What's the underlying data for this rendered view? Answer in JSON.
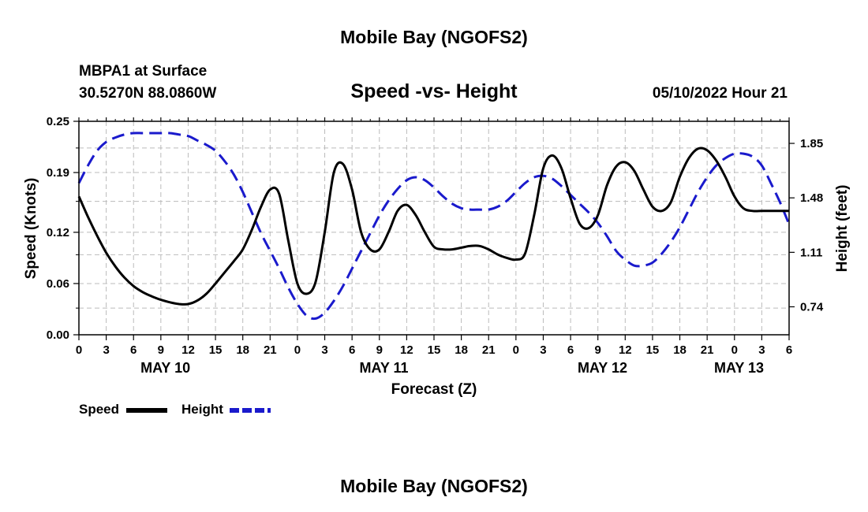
{
  "title": "Mobile Bay (NGOFS2)",
  "station": "MBPA1 at Surface",
  "coords": "30.5270N  88.0860W",
  "subtitle": "Speed -vs- Height",
  "datetime": "05/10/2022 Hour 21",
  "footer_title": "Mobile Bay (NGOFS2)",
  "colors": {
    "speed": "#000000",
    "height": "#1a1acc",
    "grid": "#bbbbbb"
  },
  "chart_data": {
    "type": "line",
    "title": "Speed -vs- Height",
    "xlabel": "Forecast (Z)",
    "ylabel": "Speed (Knots)",
    "y2label": "Height (feet)",
    "x_range_hours": [
      0,
      78
    ],
    "ylim": [
      0,
      0.25
    ],
    "y2lim": [
      0.55,
      2.0
    ],
    "x_tick_labels": [
      "0",
      "3",
      "6",
      "9",
      "12",
      "15",
      "18",
      "21",
      "0",
      "3",
      "6",
      "9",
      "12",
      "15",
      "18",
      "21",
      "0",
      "3",
      "6",
      "9",
      "12",
      "15",
      "18",
      "21",
      "0",
      "3",
      "6"
    ],
    "day_labels": [
      {
        "label": "MAY 10",
        "hour": 9.5
      },
      {
        "label": "MAY 11",
        "hour": 33.5
      },
      {
        "label": "MAY 12",
        "hour": 57.5
      },
      {
        "label": "MAY 13",
        "hour": 72.5
      }
    ],
    "y_ticks": [
      "0.00",
      "0.06",
      "0.12",
      "0.19",
      "0.25"
    ],
    "y2_ticks": [
      "0.74",
      "1.11",
      "1.48",
      "1.85"
    ],
    "legend": [
      {
        "name": "Speed",
        "style": "solid"
      },
      {
        "name": "Height",
        "style": "dashed"
      }
    ],
    "series": [
      {
        "name": "Speed",
        "unit": "knots",
        "x": [
          0,
          1,
          2,
          3,
          4,
          5,
          6,
          7,
          8,
          9,
          10,
          11,
          12,
          13,
          14,
          15,
          16,
          17,
          18,
          19,
          20,
          21,
          22,
          23,
          24,
          25,
          26,
          27,
          28,
          29,
          30,
          31,
          32,
          33,
          34,
          35,
          36,
          37,
          38,
          39,
          40,
          41,
          42,
          43,
          44,
          45,
          46,
          47,
          48,
          49,
          50,
          51,
          52,
          53,
          54,
          55,
          56,
          57,
          58,
          59,
          60,
          61,
          62,
          63,
          64,
          65,
          66,
          67,
          68,
          69,
          70,
          71,
          72,
          73,
          74,
          75,
          76,
          77,
          78
        ],
        "values": [
          0.162,
          0.138,
          0.116,
          0.096,
          0.08,
          0.067,
          0.057,
          0.05,
          0.045,
          0.041,
          0.038,
          0.036,
          0.036,
          0.04,
          0.048,
          0.06,
          0.073,
          0.086,
          0.1,
          0.123,
          0.15,
          0.17,
          0.165,
          0.11,
          0.06,
          0.048,
          0.062,
          0.12,
          0.19,
          0.2,
          0.17,
          0.12,
          0.1,
          0.1,
          0.12,
          0.145,
          0.152,
          0.14,
          0.12,
          0.103,
          0.1,
          0.1,
          0.102,
          0.104,
          0.104,
          0.1,
          0.094,
          0.09,
          0.088,
          0.095,
          0.14,
          0.195,
          0.21,
          0.195,
          0.16,
          0.13,
          0.125,
          0.14,
          0.175,
          0.197,
          0.202,
          0.192,
          0.17,
          0.15,
          0.145,
          0.155,
          0.185,
          0.207,
          0.218,
          0.216,
          0.204,
          0.185,
          0.162,
          0.148,
          0.145,
          0.145,
          0.145,
          0.145,
          0.145
        ]
      },
      {
        "name": "Height",
        "unit": "feet",
        "x": [
          0,
          1,
          2,
          3,
          4,
          5,
          6,
          7,
          8,
          9,
          10,
          11,
          12,
          13,
          14,
          15,
          16,
          17,
          18,
          19,
          20,
          21,
          22,
          23,
          24,
          25,
          26,
          27,
          28,
          29,
          30,
          31,
          32,
          33,
          34,
          35,
          36,
          37,
          38,
          39,
          40,
          41,
          42,
          43,
          44,
          45,
          46,
          47,
          48,
          49,
          50,
          51,
          52,
          53,
          54,
          55,
          56,
          57,
          58,
          59,
          60,
          61,
          62,
          63,
          64,
          65,
          66,
          67,
          68,
          69,
          70,
          71,
          72,
          73,
          74,
          75,
          76,
          77,
          78
        ],
        "values": [
          1.58,
          1.7,
          1.8,
          1.86,
          1.89,
          1.91,
          1.92,
          1.92,
          1.92,
          1.92,
          1.92,
          1.91,
          1.9,
          1.87,
          1.84,
          1.8,
          1.73,
          1.64,
          1.52,
          1.38,
          1.24,
          1.12,
          1.0,
          0.87,
          0.76,
          0.68,
          0.66,
          0.7,
          0.78,
          0.88,
          1.0,
          1.12,
          1.24,
          1.36,
          1.46,
          1.54,
          1.6,
          1.62,
          1.6,
          1.55,
          1.49,
          1.44,
          1.41,
          1.4,
          1.4,
          1.4,
          1.42,
          1.46,
          1.52,
          1.58,
          1.62,
          1.63,
          1.61,
          1.56,
          1.5,
          1.44,
          1.38,
          1.31,
          1.22,
          1.12,
          1.06,
          1.02,
          1.02,
          1.04,
          1.1,
          1.18,
          1.28,
          1.4,
          1.52,
          1.62,
          1.7,
          1.75,
          1.78,
          1.78,
          1.76,
          1.7,
          1.58,
          1.45,
          1.3
        ]
      }
    ]
  }
}
